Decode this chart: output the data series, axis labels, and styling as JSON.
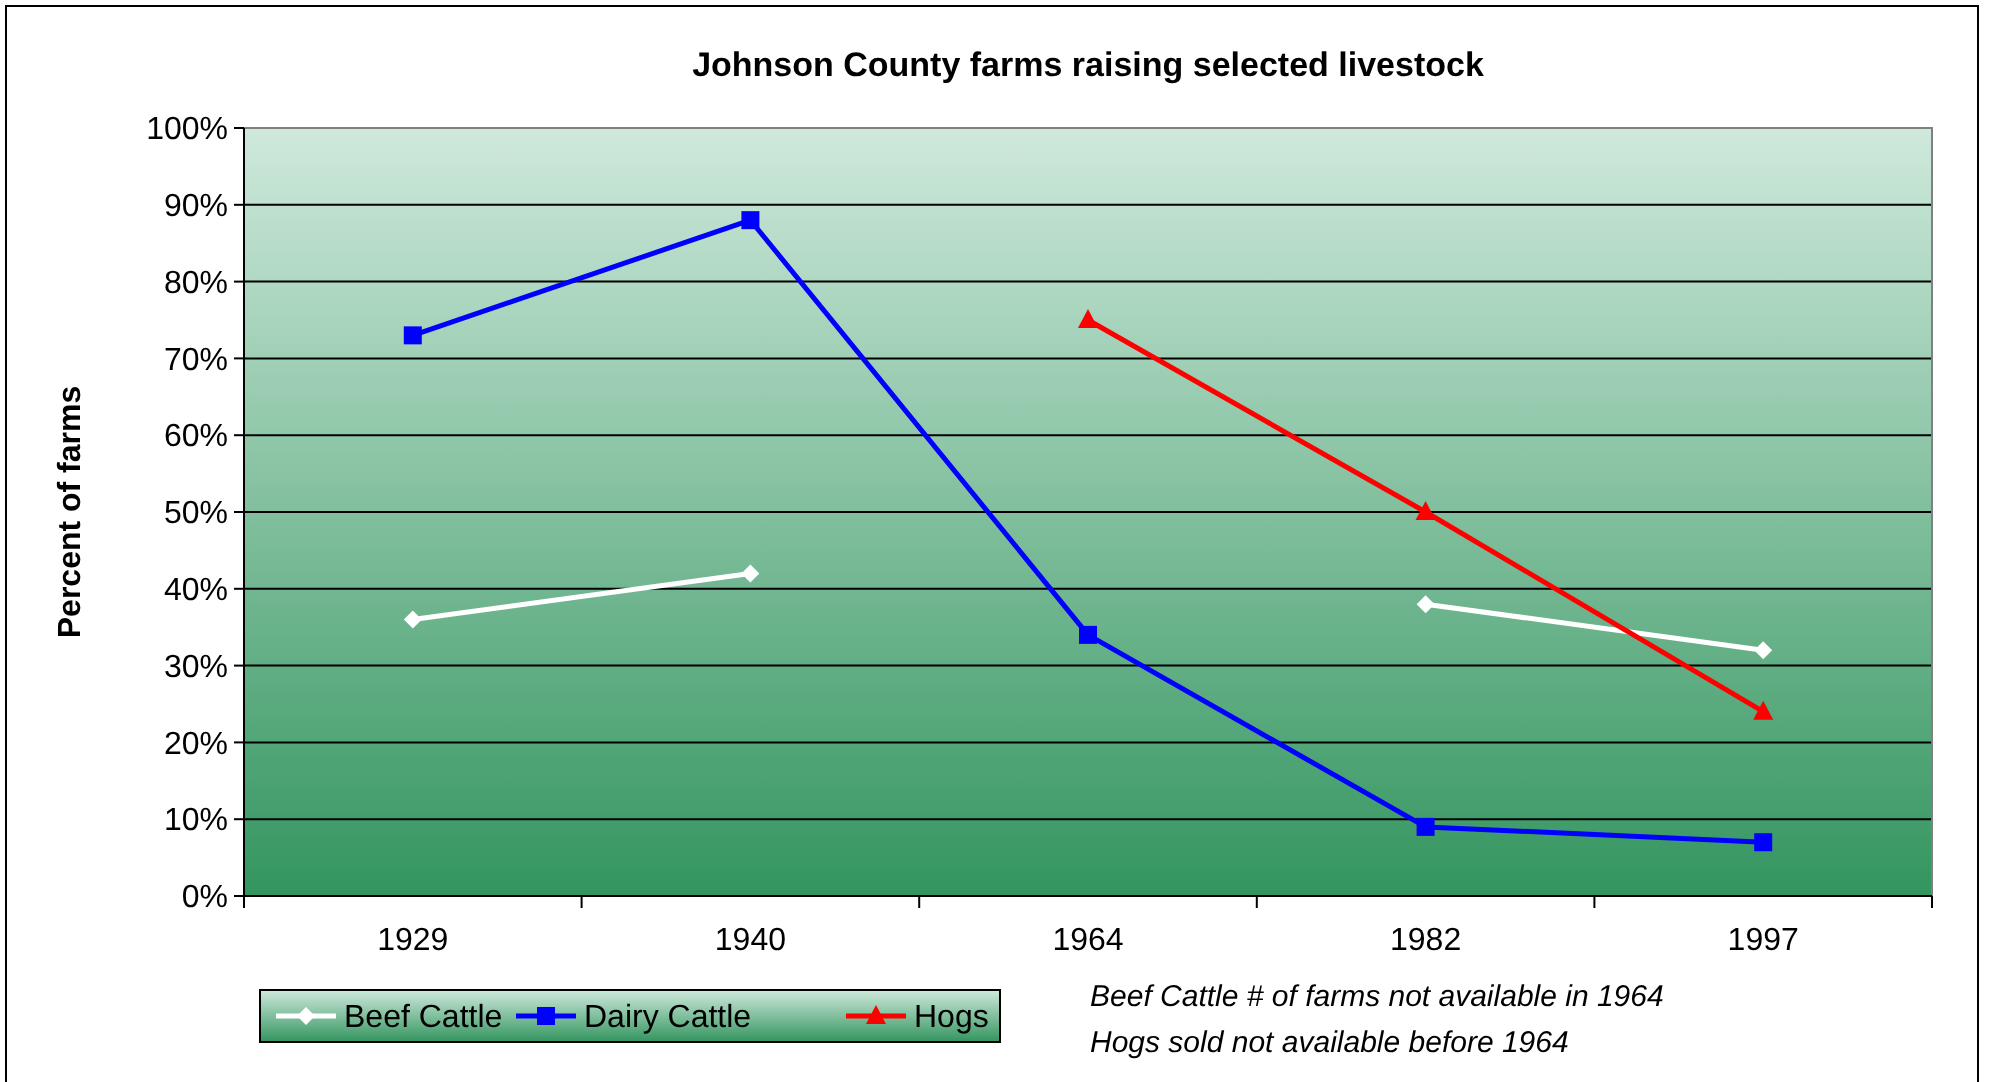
{
  "chart_data": {
    "type": "line",
    "title": "Johnson County farms raising selected livestock",
    "ylabel": "Percent of farms",
    "categories": [
      "1929",
      "1940",
      "1964",
      "1982",
      "1997"
    ],
    "series": [
      {
        "name": "Beef Cattle",
        "color": "#ffffff",
        "marker": "diamond",
        "values": [
          36,
          42,
          null,
          38,
          32
        ]
      },
      {
        "name": "Dairy Cattle",
        "color": "#0000ff",
        "marker": "square",
        "values": [
          73,
          88,
          34,
          9,
          7
        ]
      },
      {
        "name": "Hogs",
        "color": "#ff0000",
        "marker": "triangle",
        "values": [
          null,
          null,
          75,
          50,
          24
        ]
      }
    ],
    "ylim": [
      0,
      100
    ],
    "yticks": [
      {
        "value": 0,
        "label": "0%"
      },
      {
        "value": 10,
        "label": "10%"
      },
      {
        "value": 20,
        "label": "20%"
      },
      {
        "value": 30,
        "label": "30%"
      },
      {
        "value": 40,
        "label": "40%"
      },
      {
        "value": 50,
        "label": "50%"
      },
      {
        "value": 60,
        "label": "60%"
      },
      {
        "value": 70,
        "label": "70%"
      },
      {
        "value": 80,
        "label": "80%"
      },
      {
        "value": 90,
        "label": "90%"
      },
      {
        "value": 100,
        "label": "100%"
      }
    ],
    "grid": "y",
    "legend": "bottom",
    "annotations": [
      "Beef Cattle # of farms not available in 1964",
      "Hogs sold not available before 1964"
    ]
  }
}
